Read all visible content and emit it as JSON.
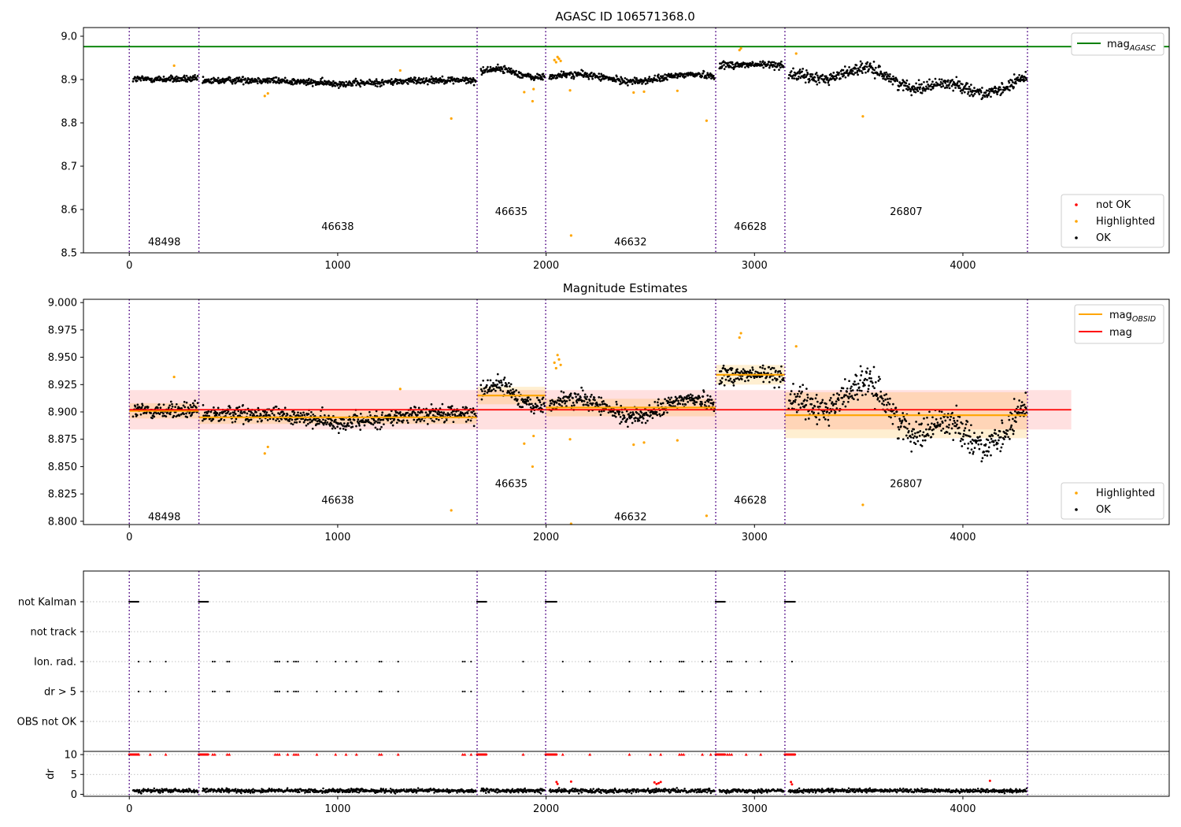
{
  "chart_data": [
    {
      "type": "scatter",
      "title": "AGASC ID 106571368.0",
      "xlim": [
        -220,
        4990
      ],
      "ylim": [
        8.5,
        9.02
      ],
      "xticks": [
        "0",
        "1000",
        "2000",
        "3000",
        "4000"
      ],
      "yticks": [
        "8.5",
        "8.6",
        "8.7",
        "8.8",
        "8.9",
        "9.0"
      ],
      "hlines": [
        {
          "name": "mag_AGASC",
          "y": 8.976,
          "color": "#008000"
        }
      ],
      "obsid_boundaries": [
        0,
        334,
        1669,
        1998,
        2814,
        3146,
        4310
      ],
      "obsid_labels": [
        {
          "text": "48498",
          "x": 168,
          "y": 8.525
        },
        {
          "text": "46638",
          "x": 1000,
          "y": 8.56
        },
        {
          "text": "46635",
          "x": 1833,
          "y": 8.595
        },
        {
          "text": "46632",
          "x": 2405,
          "y": 8.525
        },
        {
          "text": "46628",
          "x": 2980,
          "y": 8.56
        },
        {
          "text": "26807",
          "x": 3728,
          "y": 8.595
        }
      ],
      "highlighted_points": [
        [
          215,
          8.932
        ],
        [
          650,
          8.862
        ],
        [
          665,
          8.868
        ],
        [
          1300,
          8.921
        ],
        [
          1545,
          8.81
        ],
        [
          1895,
          8.871
        ],
        [
          1935,
          8.85
        ],
        [
          1940,
          8.878
        ],
        [
          2040,
          8.945
        ],
        [
          2048,
          8.94
        ],
        [
          2055,
          8.952
        ],
        [
          2062,
          8.948
        ],
        [
          2070,
          8.943
        ],
        [
          2115,
          8.875
        ],
        [
          2120,
          8.54
        ],
        [
          2420,
          8.87
        ],
        [
          2470,
          8.872
        ],
        [
          2630,
          8.874
        ],
        [
          2770,
          8.805
        ],
        [
          2928,
          8.968
        ],
        [
          2935,
          8.972
        ],
        [
          3200,
          8.96
        ],
        [
          3520,
          8.815
        ]
      ],
      "series": [
        {
          "name": "mag_AGASC",
          "color": "#008000"
        },
        {
          "name": "not OK",
          "color": "#ff0000"
        },
        {
          "name": "Highlighted",
          "color": "#ffa500"
        },
        {
          "name": "OK",
          "color": "#000000"
        }
      ],
      "legend_upper": {
        "placement": "upper right",
        "entries": [
          {
            "base": "mag",
            "sub": "AGASC"
          }
        ]
      },
      "legend_lower": {
        "placement": "lower right",
        "entries": [
          "not OK",
          "Highlighted",
          "OK"
        ]
      }
    },
    {
      "type": "scatter",
      "title": "Magnitude Estimates",
      "xlim": [
        -220,
        4990
      ],
      "ylim": [
        8.797,
        9.003
      ],
      "xticks": [
        "0",
        "1000",
        "2000",
        "3000",
        "4000"
      ],
      "yticks": [
        "8.800",
        "8.825",
        "8.850",
        "8.875",
        "8.900",
        "8.925",
        "8.950",
        "8.975",
        "9.000"
      ],
      "mag": {
        "value": 8.902,
        "band": [
          8.884,
          8.92
        ],
        "x_range": [
          0,
          4520
        ],
        "color": "#ff0000"
      },
      "mag_obsid": [
        {
          "x": [
            0,
            334
          ],
          "value": 8.901,
          "band": [
            8.894,
            8.908
          ]
        },
        {
          "x": [
            334,
            1669
          ],
          "value": 8.895,
          "band": [
            8.889,
            8.901
          ]
        },
        {
          "x": [
            1669,
            1998
          ],
          "value": 8.915,
          "band": [
            8.907,
            8.923
          ]
        },
        {
          "x": [
            1998,
            2814
          ],
          "value": 8.904,
          "band": [
            8.896,
            8.912
          ]
        },
        {
          "x": [
            2814,
            3146
          ],
          "value": 8.934,
          "band": [
            8.925,
            8.943
          ]
        },
        {
          "x": [
            3146,
            4310
          ],
          "value": 8.897,
          "band": [
            8.876,
            8.918
          ]
        }
      ],
      "obsid_labels": [
        {
          "text": "48498",
          "x": 168,
          "y": 8.804
        },
        {
          "text": "46638",
          "x": 1000,
          "y": 8.819
        },
        {
          "text": "46635",
          "x": 1833,
          "y": 8.834
        },
        {
          "text": "46632",
          "x": 2405,
          "y": 8.804
        },
        {
          "text": "46628",
          "x": 2980,
          "y": 8.819
        },
        {
          "text": "26807",
          "x": 3728,
          "y": 8.834
        }
      ],
      "series": [
        {
          "name": "mag_OBSID",
          "color": "#ffa500"
        },
        {
          "name": "mag",
          "color": "#ff0000"
        },
        {
          "name": "Highlighted",
          "color": "#ffa500"
        },
        {
          "name": "OK",
          "color": "#000000"
        }
      ],
      "legend_upper": {
        "placement": "upper right",
        "entries": [
          {
            "base": "mag",
            "sub": "OBSID"
          },
          {
            "base": "mag",
            "sub": ""
          }
        ]
      },
      "legend_lower": {
        "placement": "lower right",
        "entries": [
          "Highlighted",
          "OK"
        ]
      }
    },
    {
      "type": "scatter",
      "title": "",
      "flag_rows": [
        "not Kalman",
        "not track",
        "Ion. rad.",
        "dr > 5",
        "OBS not OK"
      ],
      "kalman_segments": [
        [
          0,
          45
        ],
        [
          334,
          380
        ],
        [
          1669,
          1715
        ],
        [
          1998,
          2050
        ],
        [
          2814,
          2860
        ],
        [
          3146,
          3195
        ]
      ],
      "ion_rad_x": [
        45,
        100,
        175,
        400,
        410,
        470,
        480,
        700,
        710,
        720,
        760,
        790,
        800,
        810,
        900,
        990,
        1040,
        1090,
        1200,
        1210,
        1290,
        1600,
        1610,
        1640,
        1890,
        2080,
        2210,
        2400,
        2500,
        2550,
        2640,
        2650,
        2660,
        2750,
        2790,
        2870,
        2880,
        2890,
        2960,
        3030,
        3180
      ],
      "dr5_x": [
        45,
        100,
        175,
        400,
        410,
        470,
        480,
        700,
        710,
        720,
        760,
        790,
        800,
        810,
        900,
        990,
        1040,
        1090,
        1200,
        1210,
        1290,
        1600,
        1610,
        1640,
        1890,
        2080,
        2210,
        2400,
        2500,
        2550,
        2640,
        2650,
        2660,
        2750,
        2790,
        2870,
        2880,
        2890,
        2960,
        3030
      ],
      "dr_panel": {
        "ylabel": "dr",
        "yticks": [
          "0",
          "5",
          "10"
        ],
        "ylim": [
          -0.5,
          10.8
        ],
        "spikes": [
          [
            2050,
            3.1
          ],
          [
            2055,
            2.6
          ],
          [
            2120,
            3.2
          ],
          [
            2520,
            3.0
          ],
          [
            2530,
            2.6
          ],
          [
            2540,
            2.8
          ],
          [
            2550,
            3.1
          ],
          [
            3175,
            3.1
          ],
          [
            3180,
            2.5
          ],
          [
            4130,
            3.4
          ]
        ]
      },
      "xlim": [
        -220,
        4990
      ],
      "xticks": [
        "0",
        "1000",
        "2000",
        "3000",
        "4000"
      ]
    }
  ]
}
